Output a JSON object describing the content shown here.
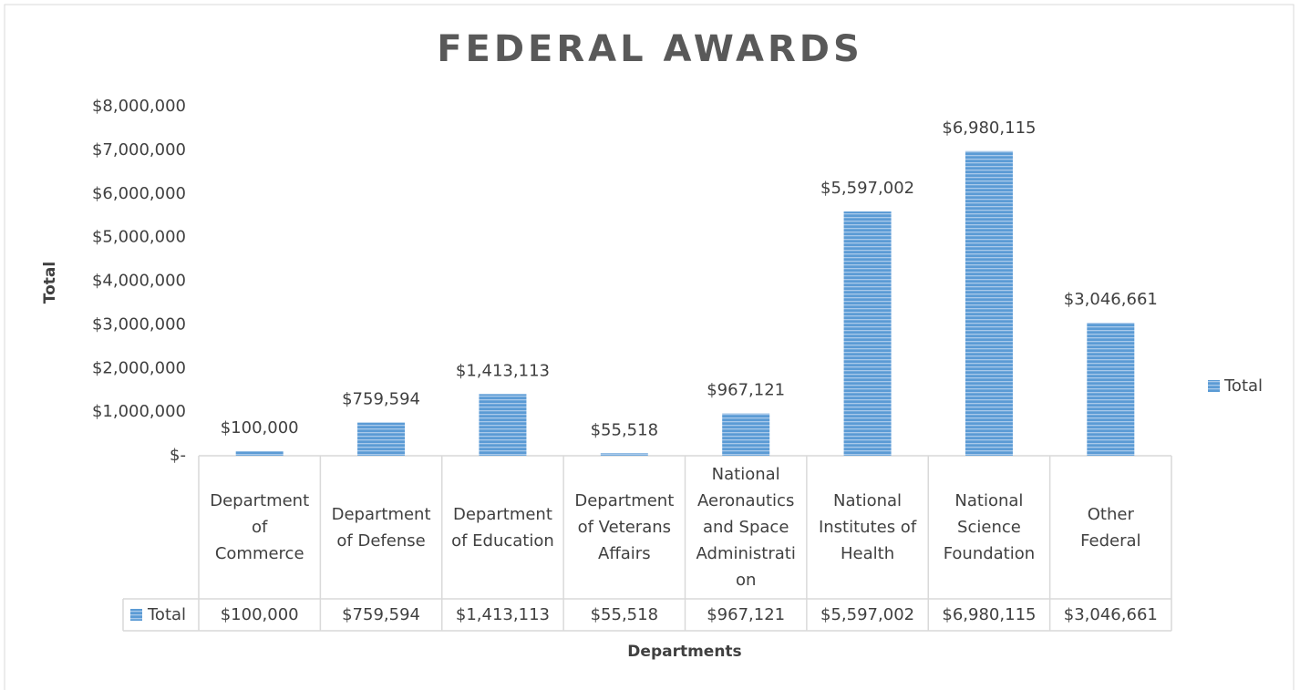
{
  "chart_data": {
    "type": "bar",
    "title": "FEDERAL AWARDS",
    "x_label": "Departments",
    "y_label": "Total",
    "categories": [
      "Department of Commerce",
      "Department of Defense",
      "Department of Education",
      "Department of Veterans Affairs",
      "National Aeronautics and Space Administration",
      "National Institutes of Health",
      "National Science Foundation",
      "Other Federal"
    ],
    "series": [
      {
        "name": "Total",
        "color": "#5b9bd5",
        "values": [
          100000,
          759594,
          1413113,
          55518,
          967121,
          5597002,
          6980115,
          3046661
        ],
        "value_labels": [
          "$100,000",
          "$759,594",
          "$1,413,113",
          "$55,518",
          "$967,121",
          "$5,597,002",
          "$6,980,115",
          "$3,046,661"
        ]
      }
    ],
    "ylim": [
      0,
      8000000
    ],
    "yticks": [
      {
        "value": 0,
        "label": "$-"
      },
      {
        "value": 1000000,
        "label": "$1,000,000"
      },
      {
        "value": 2000000,
        "label": "$2,000,000"
      },
      {
        "value": 3000000,
        "label": "$3,000,000"
      },
      {
        "value": 4000000,
        "label": "$4,000,000"
      },
      {
        "value": 5000000,
        "label": "$5,000,000"
      },
      {
        "value": 6000000,
        "label": "$6,000,000"
      },
      {
        "value": 7000000,
        "label": "$7,000,000"
      },
      {
        "value": 8000000,
        "label": "$8,000,000"
      }
    ],
    "grid": false,
    "legend": "right",
    "data_table": true
  }
}
